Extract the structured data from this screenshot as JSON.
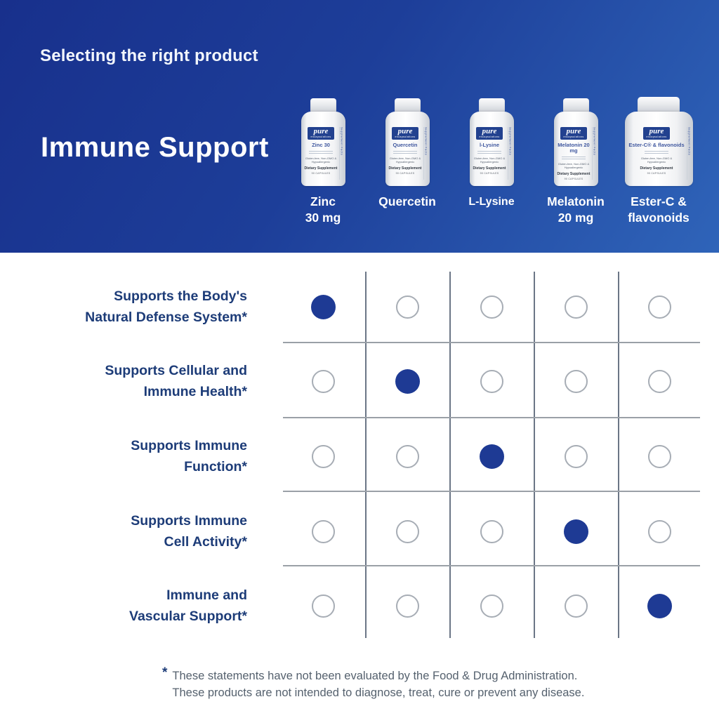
{
  "header": {
    "subtitle": "Selecting the right product",
    "title": "Immune Support"
  },
  "products": [
    {
      "name_lines": [
        "Zinc",
        "30 mg"
      ],
      "label_name": "Zinc 30",
      "label_sub": "",
      "bottle_size": "small",
      "text_style": "normal"
    },
    {
      "name_lines": [
        "Quercetin"
      ],
      "label_name": "Quercetin",
      "label_sub": "",
      "bottle_size": "small",
      "text_style": "normal"
    },
    {
      "name_lines": [
        "L-Lysine"
      ],
      "label_name": "l-Lysine",
      "label_sub": "",
      "bottle_size": "small",
      "text_style": "light"
    },
    {
      "name_lines": [
        "Melatonin",
        "20 mg"
      ],
      "label_name": "Melatonin",
      "label_sub": "20 mg",
      "bottle_size": "small",
      "text_style": "normal"
    },
    {
      "name_lines": [
        "Ester-C &",
        "flavonoids"
      ],
      "label_name": "Ester-C®",
      "label_sub": "& flavonoids",
      "bottle_size": "large",
      "text_style": "normal"
    }
  ],
  "bottle_label": {
    "brand": "pure",
    "brand_sub": "encapsulations",
    "gluten_text": "Gluten-free, Non-GMO & Hypoallergenic",
    "dietary_text": "Dietary Supplement",
    "capsules_text": "90 CAPSULES",
    "side_text": "Supplement Facts"
  },
  "matrix": {
    "rows": [
      {
        "label_lines": [
          "Supports the Body's",
          "Natural Defense System*"
        ],
        "filled_col": 0
      },
      {
        "label_lines": [
          "Supports Cellular and",
          "Immune Health*"
        ],
        "filled_col": 1
      },
      {
        "label_lines": [
          "Supports Immune",
          "Function*"
        ],
        "filled_col": 2
      },
      {
        "label_lines": [
          "Supports Immune",
          "Cell Activity*"
        ],
        "filled_col": 3
      },
      {
        "label_lines": [
          "Immune and",
          "Vascular Support*"
        ],
        "filled_col": 4
      }
    ]
  },
  "footnote": {
    "marker": "*",
    "lines": [
      "These statements have not been evaluated by the Food & Drug Administration.",
      "These products are not intended to diagnose, treat, cure or prevent any disease."
    ]
  },
  "colors": {
    "header_gradient_start": "#18308c",
    "header_gradient_end": "#2f64b9",
    "accent_navy": "#1d3c78",
    "dot_fill": "#1e3a94",
    "circle_border": "#a7adb5",
    "grid_vertical": "#6b7686",
    "grid_horizontal": "#9aa0a7",
    "footnote_text": "#55616e"
  },
  "chart_data": {
    "type": "table",
    "title": "Immune Support",
    "subtitle": "Selecting the right product",
    "columns": [
      "Zinc 30 mg",
      "Quercetin",
      "L-Lysine",
      "Melatonin 20 mg",
      "Ester-C & flavonoids"
    ],
    "rows": [
      "Supports the Body's Natural Defense System*",
      "Supports Cellular and Immune Health*",
      "Supports Immune Function*",
      "Supports Immune Cell Activity*",
      "Immune and Vascular Support*"
    ],
    "values": [
      [
        1,
        0,
        0,
        0,
        0
      ],
      [
        0,
        1,
        0,
        0,
        0
      ],
      [
        0,
        0,
        1,
        0,
        0
      ],
      [
        0,
        0,
        0,
        1,
        0
      ],
      [
        0,
        0,
        0,
        0,
        1
      ]
    ],
    "legend": "filled circle = product provides this benefit"
  }
}
